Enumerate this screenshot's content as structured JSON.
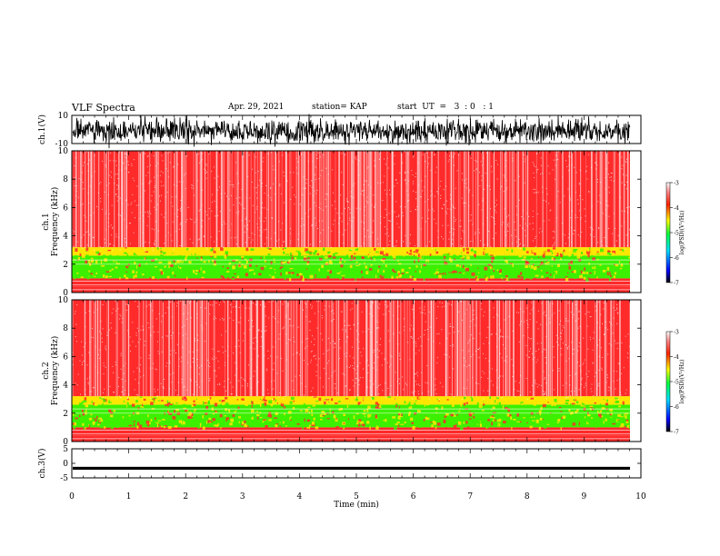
{
  "header": {
    "title": "VLF Spectra",
    "date": "Apr. 29, 2021",
    "station": "station= KAP",
    "start": "start  UT  =   3  : 0   : 1"
  },
  "colors": {
    "spectrogram_background": "#ff2a2a",
    "band_yellow": "#ffe600",
    "band_green": "#3cf000",
    "waveform": "#000000"
  },
  "chart_data": [
    {
      "type": "line",
      "panel": "ch1-waveform",
      "ylabel": "ch.1(V)",
      "ylim": [
        -10,
        10
      ],
      "yticks": [
        "10",
        "-10"
      ],
      "xlim": [
        0,
        10
      ],
      "series": [
        {
          "values_range": [
            -9,
            7
          ],
          "description_value": "dense noise waveform"
        }
      ]
    },
    {
      "type": "heatmap",
      "panel": "ch1-spectrogram",
      "ylabel": "ch.1\nFrequency  (kHz)",
      "ylim": [
        0,
        10
      ],
      "yticks": [
        "0",
        "2",
        "4",
        "6",
        "8",
        "10"
      ],
      "xlim": [
        0,
        9.8
      ],
      "bands": [
        {
          "from_khz": 0.0,
          "to_khz": 0.4,
          "level": -3.2
        },
        {
          "from_khz": 0.4,
          "to_khz": 1.0,
          "level": -3.6
        },
        {
          "from_khz": 1.0,
          "to_khz": 2.6,
          "level": -4.6
        },
        {
          "from_khz": 2.6,
          "to_khz": 3.2,
          "level": -4.0
        },
        {
          "from_khz": 3.2,
          "to_khz": 10.0,
          "level": -3.3
        }
      ],
      "colorbar": {
        "label": "log(PSD)(V²/Hz)",
        "ticks": [
          "-3",
          "-4",
          "-5",
          "-6",
          "-7"
        ],
        "range": [
          -7,
          -3
        ]
      }
    },
    {
      "type": "heatmap",
      "panel": "ch2-spectrogram",
      "ylabel": "ch.2\nFrequency  (kHz)",
      "ylim": [
        0,
        10
      ],
      "yticks": [
        "0",
        "2",
        "4",
        "6",
        "8",
        "10"
      ],
      "xlim": [
        0,
        9.8
      ],
      "bands": [
        {
          "from_khz": 0.0,
          "to_khz": 0.4,
          "level": -3.2
        },
        {
          "from_khz": 0.4,
          "to_khz": 1.0,
          "level": -3.6
        },
        {
          "from_khz": 1.0,
          "to_khz": 2.6,
          "level": -4.7
        },
        {
          "from_khz": 2.6,
          "to_khz": 3.2,
          "level": -4.0
        },
        {
          "from_khz": 3.2,
          "to_khz": 10.0,
          "level": -3.3
        }
      ],
      "colorbar": {
        "label": "log(PSD)(V²/Hz)",
        "ticks": [
          "-3",
          "-4",
          "-5",
          "-6",
          "-7"
        ],
        "range": [
          -7,
          -3
        ]
      }
    },
    {
      "type": "line",
      "panel": "ch3-waveform",
      "ylabel": "ch.3(V)",
      "ylim": [
        -5,
        5
      ],
      "yticks": [
        "5",
        "0",
        "-5"
      ],
      "xlim": [
        0,
        10
      ],
      "series": [
        {
          "values_range": [
            -2.2,
            -1.2
          ]
        }
      ]
    }
  ],
  "xaxis": {
    "label": "Time  (min)",
    "ticks": [
      "0",
      "1",
      "2",
      "3",
      "4",
      "5",
      "6",
      "7",
      "8",
      "9",
      "10"
    ],
    "range": [
      0,
      10
    ]
  }
}
